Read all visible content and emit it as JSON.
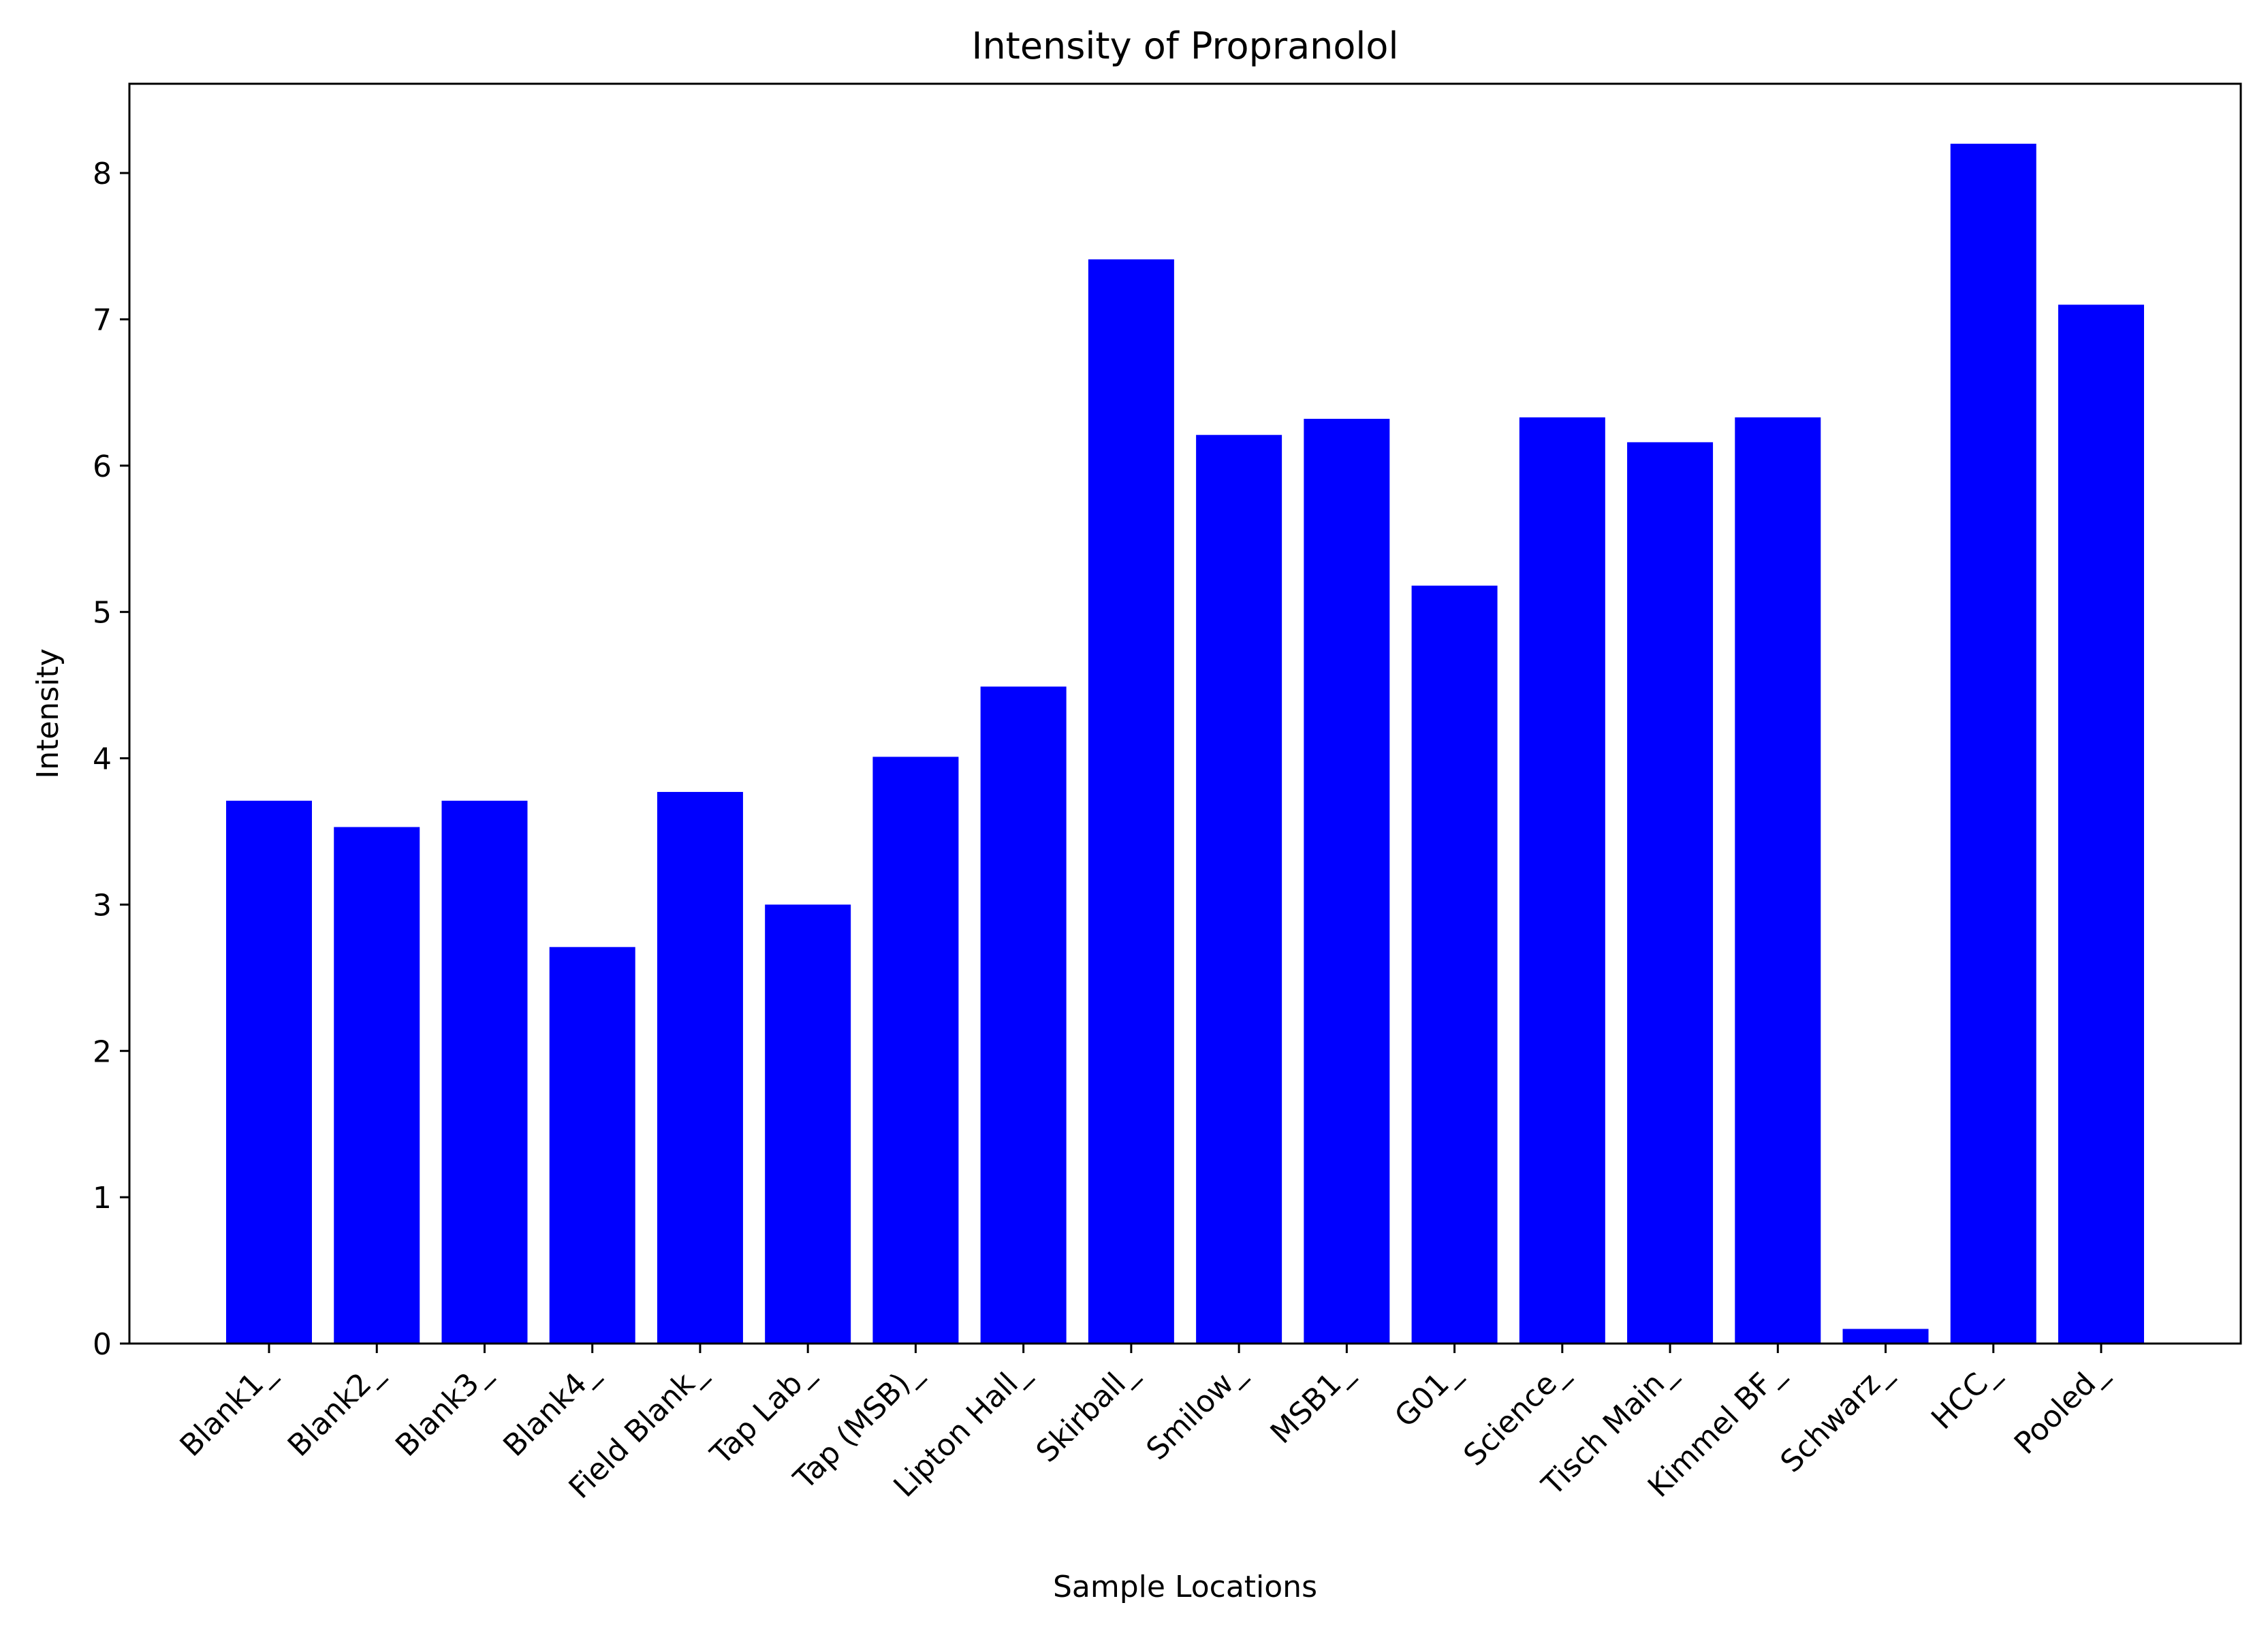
{
  "chart_data": {
    "type": "bar",
    "title": "Intensity of Propranolol",
    "xlabel": "Sample Locations",
    "ylabel": "Intensity",
    "categories": [
      "Blank1_",
      "Blank2_",
      "Blank3_",
      "Blank4_",
      "Field Blank_",
      "Tap Lab_",
      "Tap (MSB)_",
      "Lipton Hall_",
      "Skirball_",
      "Smilow_",
      "MSB1_",
      "G01_",
      "Science_",
      "Tisch Main_",
      "Kimmel BF_",
      "Schwarz_",
      "HCC_",
      "Pooled_"
    ],
    "values": [
      3.71,
      3.53,
      3.71,
      2.71,
      3.77,
      3.0,
      4.01,
      4.49,
      7.41,
      6.21,
      6.32,
      5.18,
      6.33,
      6.16,
      6.33,
      0.1,
      8.2,
      7.1
    ],
    "yticks": [
      "0",
      "1",
      "2",
      "3",
      "4",
      "5",
      "6",
      "7",
      "8"
    ],
    "ylim": [
      0,
      8.61
    ],
    "grid": false,
    "legend": "none",
    "bar_color": "#0000ff"
  }
}
